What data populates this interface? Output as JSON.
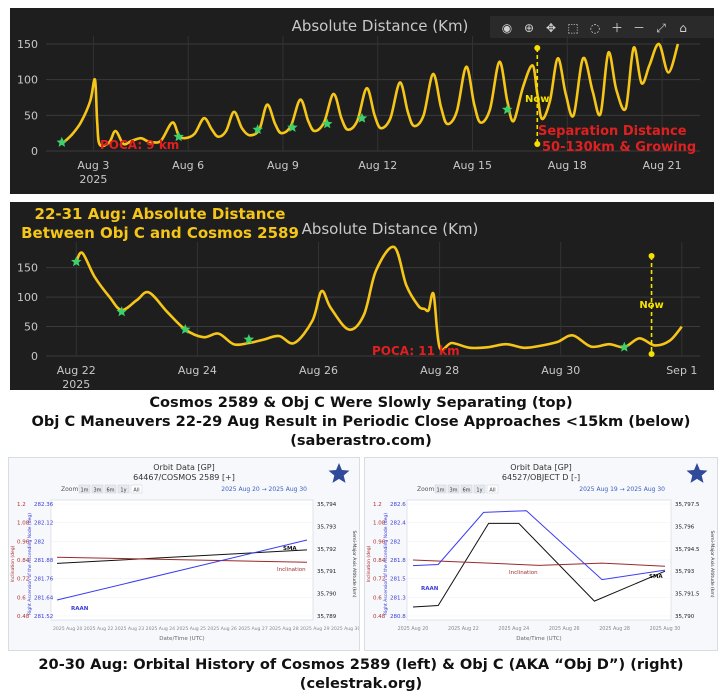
{
  "colors": {
    "bg": "#1e1e1e",
    "line": "#f5c518",
    "poca": "#e02020",
    "star": "#3ed06a",
    "axis_text": "#c8c8c8",
    "white": "#ffffff"
  },
  "toolbar_icons": [
    "camera-icon",
    "zoom-icon",
    "pan-icon",
    "lasso-icon",
    "zoom-in-icon",
    "zoom-out-icon",
    "autoscale-icon",
    "home-icon",
    "menu-icon"
  ],
  "captions": {
    "line1": "Cosmos 2589 & Obj C Were Slowly Separating (top)",
    "line2": "Obj C Maneuvers 22-29 Aug Result in Periodic Close Approaches <15km (below)",
    "line3": "(saberastro.com)",
    "line4": "20-30 Aug:  Orbital History of Cosmos 2589 (left) & Obj C (AKA “Obj D”) (right)",
    "line5": "(celestrak.org)"
  },
  "chart_data": [
    {
      "type": "line",
      "title": "Absolute Distance (Km)",
      "x_ticks": [
        "Aug 3",
        "Aug 6",
        "Aug 9",
        "Aug 12",
        "Aug 15",
        "Aug 18",
        "Aug 21"
      ],
      "x_ticks_sub": [
        "2025",
        "",
        "",
        "",
        "",
        "",
        ""
      ],
      "x_tick_days": [
        3,
        6,
        9,
        12,
        15,
        18,
        21
      ],
      "xlim_days": [
        1.5,
        22.2
      ],
      "y_ticks": [
        "0",
        "50",
        "100",
        "150"
      ],
      "ylim": [
        0,
        150
      ],
      "series": [
        {
          "x_days": [
            2.0,
            2.3,
            2.6,
            2.9,
            3.05,
            3.12,
            3.2,
            3.5,
            3.7,
            3.95,
            4.2,
            4.5,
            4.7,
            4.9,
            5.15,
            5.5,
            5.7,
            5.9,
            6.2,
            6.5,
            6.75,
            6.95,
            7.2,
            7.45,
            7.7,
            7.95,
            8.25,
            8.5,
            8.75,
            8.95,
            9.25,
            9.55,
            9.8,
            10.0,
            10.3,
            10.6,
            10.85,
            11.05,
            11.35,
            11.65,
            11.9,
            12.1,
            12.4,
            12.7,
            12.95,
            13.15,
            13.45,
            13.75,
            14.0,
            14.2,
            14.5,
            14.8,
            15.05,
            15.25,
            15.55,
            15.85,
            16.1,
            16.3,
            16.6,
            16.9,
            17.05,
            17.2,
            17.45,
            17.7,
            17.95,
            18.2,
            18.5,
            18.8,
            19.05,
            19.3,
            19.55,
            19.85,
            20.1,
            20.35,
            20.6,
            20.9,
            21.2,
            21.5
          ],
          "values": [
            10,
            22,
            40,
            70,
            100,
            40,
            9,
            12,
            28,
            10,
            14,
            18,
            14,
            12,
            15,
            40,
            22,
            18,
            24,
            46,
            30,
            20,
            28,
            55,
            32,
            22,
            30,
            65,
            38,
            25,
            35,
            72,
            42,
            28,
            40,
            80,
            46,
            30,
            42,
            88,
            50,
            32,
            46,
            96,
            55,
            35,
            50,
            108,
            62,
            38,
            55,
            118,
            66,
            40,
            58,
            125,
            70,
            42,
            90,
            120,
            80,
            45,
            70,
            130,
            80,
            50,
            130,
            84,
            52,
            138,
            86,
            60,
            145,
            95,
            120,
            150,
            110,
            150
          ]
        }
      ],
      "markers_days": [
        2.0,
        5.7,
        8.2,
        9.3,
        10.4,
        11.5,
        16.1
      ],
      "markers_values": [
        12,
        20,
        30,
        33,
        38,
        46,
        58
      ],
      "now_day": 17.05,
      "now_label": "Now",
      "poca_label": "POCA: 9 km",
      "annotation": [
        "Separation Distance",
        "50-130km & Growing"
      ]
    },
    {
      "type": "line",
      "title": "Absolute Distance (Km)",
      "overlay_title": [
        "22-31 Aug: Absolute Distance",
        "Between Obj C and Cosmos 2589"
      ],
      "x_ticks": [
        "Aug 22",
        "Aug 24",
        "Aug 26",
        "Aug 28",
        "Aug 30",
        "Sep 1"
      ],
      "x_ticks_sub": [
        "2025",
        "",
        "",
        "",
        "",
        ""
      ],
      "x_tick_days": [
        22,
        24,
        26,
        28,
        30,
        32
      ],
      "xlim_days": [
        21.5,
        32.3
      ],
      "y_ticks": [
        "0",
        "50",
        "100",
        "150"
      ],
      "ylim": [
        0,
        180
      ],
      "series": [
        {
          "x_days": [
            22.0,
            22.1,
            22.3,
            22.55,
            22.75,
            23.0,
            23.2,
            23.5,
            23.8,
            24.1,
            24.35,
            24.6,
            24.85,
            25.1,
            25.35,
            25.6,
            25.9,
            26.05,
            26.2,
            26.5,
            26.75,
            26.95,
            27.25,
            27.45,
            27.65,
            27.75,
            27.82,
            27.9,
            28.0,
            28.2,
            28.5,
            28.8,
            29.1,
            29.4,
            29.7,
            29.95,
            30.2,
            30.5,
            30.8,
            31.05,
            31.3,
            31.55,
            31.8,
            32.0
          ],
          "values": [
            160,
            175,
            135,
            100,
            78,
            95,
            108,
            75,
            45,
            32,
            38,
            20,
            22,
            28,
            34,
            22,
            60,
            110,
            82,
            45,
            70,
            145,
            185,
            120,
            85,
            80,
            78,
            105,
            15,
            22,
            14,
            15,
            20,
            14,
            18,
            24,
            35,
            16,
            20,
            15,
            30,
            18,
            26,
            50
          ]
        }
      ],
      "markers_days": [
        22.0,
        22.75,
        23.8,
        24.85,
        31.05
      ],
      "markers_values": [
        160,
        75,
        45,
        28,
        15
      ],
      "now_day": 31.5,
      "now_label": "Now",
      "poca_label": "POCA: 11 km"
    }
  ],
  "orbit_left": {
    "title": "Orbit Data [GP]",
    "subtitle": "64467/COSMOS 2589 [+]",
    "zoom_label": "Zoom",
    "zoom_buttons": [
      "1m",
      "3m",
      "6m",
      "1y",
      "All"
    ],
    "date_range": "2025 Aug 20  →  2025 Aug 30",
    "left_ticks": [
      "1.2",
      "1.08",
      "0.96",
      "0.84",
      "0.72",
      "0.6",
      "0.48"
    ],
    "raan_ticks": [
      "282.36",
      "282.12",
      "282",
      "281.88",
      "281.76",
      "281.64",
      "281.52"
    ],
    "right_ticks": [
      "35,794",
      "35,793",
      "35,792",
      "35,791",
      "35,790",
      "35,789"
    ],
    "left_axis_label": "Inclination (deg)",
    "raan_axis_label": "Right Ascension of the Ascending Node (deg)",
    "right_axis_label": "Semi-Major Axis Altitude (km)",
    "xlabel": "Date/Time (UTC)",
    "x_ticks": "2025 Aug 20 2025 Aug 22 2025 Aug 23 2025 Aug 24 2025 Aug 25 2025 Aug 26 2025 Aug 27 2025 Aug 28 2025 Aug 29 2025 Aug 30",
    "labels": {
      "sma": "SMA",
      "inclination": "Inclination",
      "raan": "RAAN"
    },
    "series": [
      {
        "name": "SMA",
        "x": [
          0,
          1
        ],
        "values": [
          35791.35,
          35791.95
        ]
      },
      {
        "name": "Inclination",
        "x": [
          0,
          1
        ],
        "values": [
          0.858,
          0.825
        ]
      },
      {
        "name": "RAAN",
        "x": [
          0,
          1
        ],
        "values": [
          281.64,
          282.09
        ]
      }
    ]
  },
  "orbit_right": {
    "title": "Orbit Data [GP]",
    "subtitle": "64527/OBJECT D [-]",
    "zoom_label": "Zoom",
    "zoom_buttons": [
      "1m",
      "3m",
      "6m",
      "1y",
      "All"
    ],
    "date_range": "2025 Aug 19  →  2025 Aug 30",
    "left_ticks": [
      "1.2",
      "1.08",
      "0.96",
      "0.84",
      "0.72",
      "0.6",
      "0.48"
    ],
    "raan_ticks": [
      "282.6",
      "282.4",
      "282",
      "281.8",
      "281.5",
      "281.3",
      "280.8"
    ],
    "right_ticks": [
      "35,797.5",
      "35,796",
      "35,794.5",
      "35,793",
      "35,791.5",
      "35,790"
    ],
    "left_axis_label": "Inclination (deg)",
    "raan_axis_label": "Right Ascension of the Ascending Node (deg)",
    "right_axis_label": "Semi-Major Axis Altitude (km)",
    "xlabel": "Date/Time (UTC)",
    "x_ticks": [
      "2025 Aug 20",
      "2025 Aug 22",
      "2025 Aug 24",
      "2025 Aug 26",
      "2025 Aug 28",
      "2025 Aug 30"
    ],
    "labels": {
      "sma": "SMA",
      "inclination": "Inclination",
      "raan": "RAAN"
    },
    "series": [
      {
        "name": "SMA",
        "x": [
          0,
          0.1,
          0.3,
          0.42,
          0.72,
          1
        ],
        "values": [
          35790.6,
          35790.7,
          35796.2,
          35796.2,
          35791.0,
          35793.0
        ]
      },
      {
        "name": "Inclination",
        "x": [
          0,
          0.3,
          0.5,
          0.75,
          1
        ],
        "values": [
          0.84,
          0.82,
          0.805,
          0.82,
          0.8
        ]
      },
      {
        "name": "RAAN",
        "x": [
          0,
          0.1,
          0.28,
          0.45,
          0.75,
          1
        ],
        "values": [
          281.7,
          281.72,
          282.65,
          282.68,
          281.45,
          281.62
        ]
      }
    ]
  }
}
